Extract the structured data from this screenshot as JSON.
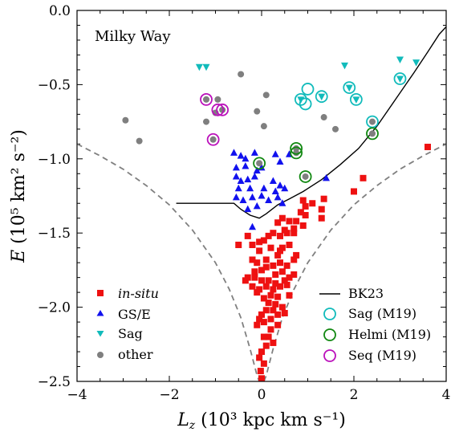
{
  "chart_data": {
    "type": "scatter",
    "title": "Milky Way",
    "xlabel": {
      "main": "L",
      "sub": "z",
      "unit": " (10³ kpc km s⁻¹)"
    },
    "ylabel": {
      "main": "E",
      "unit": " (10⁵ km² s⁻²)"
    },
    "xlim": [
      -4,
      4
    ],
    "ylim": [
      -2.5,
      0.0
    ],
    "xticks": [
      -4,
      -2,
      0,
      2,
      4
    ],
    "yticks": [
      0.0,
      -0.5,
      -1.0,
      -1.5,
      -2.0,
      -2.5
    ],
    "xtick_labels": [
      "−4",
      "−2",
      "0",
      "2",
      "4"
    ],
    "ytick_labels": [
      "0.0",
      "−0.5",
      "−1.0",
      "−1.5",
      "−2.0",
      "−2.5"
    ],
    "legend_left": [
      "in-situ",
      "GS/E",
      "Sag",
      "other"
    ],
    "legend_right": [
      "BK23",
      "Sag (M19)",
      "Helmi (M19)",
      "Seq (M19)"
    ],
    "colors": {
      "insitu": "#ee1111",
      "gse": "#1111ee",
      "sag": "#11bbbb",
      "other": "#7f7f7f",
      "helmi": "#118811",
      "seq": "#bb11bb",
      "bk23": "#000000",
      "boundary": "#808080"
    },
    "series": [
      {
        "name": "in-situ",
        "marker": "square",
        "color_key": "insitu",
        "points": [
          [
            3.6,
            -0.92
          ],
          [
            2.2,
            -1.13
          ],
          [
            2.0,
            -1.22
          ],
          [
            1.35,
            -1.27
          ],
          [
            1.3,
            -1.34
          ],
          [
            1.3,
            -1.4
          ],
          [
            0.95,
            -1.32
          ],
          [
            0.95,
            -1.38
          ],
          [
            0.9,
            -1.45
          ],
          [
            0.85,
            -1.36
          ],
          [
            0.75,
            -1.42
          ],
          [
            0.7,
            -1.47
          ],
          [
            0.6,
            -1.42
          ],
          [
            0.55,
            -1.5
          ],
          [
            0.5,
            -1.48
          ],
          [
            0.45,
            -1.4
          ],
          [
            0.4,
            -1.52
          ],
          [
            0.35,
            -1.43
          ],
          [
            -0.5,
            -1.58
          ],
          [
            -0.3,
            -1.52
          ],
          [
            -0.2,
            -1.58
          ],
          [
            0.05,
            -1.55
          ],
          [
            0.15,
            -1.52
          ],
          [
            0.45,
            -1.6
          ],
          [
            0.6,
            -1.58
          ],
          [
            0.75,
            -1.65
          ],
          [
            0.35,
            -1.65
          ],
          [
            0.2,
            -1.6
          ],
          [
            -0.05,
            -1.62
          ],
          [
            0.1,
            -1.68
          ],
          [
            -0.1,
            -1.7
          ],
          [
            -0.2,
            -1.68
          ],
          [
            0.0,
            -1.75
          ],
          [
            0.1,
            -1.73
          ],
          [
            0.25,
            -1.72
          ],
          [
            0.4,
            -1.7
          ],
          [
            0.55,
            -1.72
          ],
          [
            0.7,
            -1.68
          ],
          [
            -0.15,
            -1.76
          ],
          [
            0.3,
            -1.78
          ],
          [
            0.45,
            -1.76
          ],
          [
            0.6,
            -1.8
          ],
          [
            -0.35,
            -1.82
          ],
          [
            -0.3,
            -1.8
          ],
          [
            -0.15,
            -1.8
          ],
          [
            0.0,
            -1.82
          ],
          [
            0.15,
            -1.82
          ],
          [
            0.3,
            -1.84
          ],
          [
            0.5,
            -1.82
          ],
          [
            0.7,
            -1.78
          ],
          [
            -0.2,
            -1.86
          ],
          [
            -0.05,
            -1.88
          ],
          [
            0.1,
            -1.86
          ],
          [
            0.25,
            -1.88
          ],
          [
            0.4,
            -1.86
          ],
          [
            0.55,
            -1.85
          ],
          [
            0.6,
            -1.92
          ],
          [
            0.35,
            -1.93
          ],
          [
            0.2,
            -1.92
          ],
          [
            0.05,
            -1.94
          ],
          [
            -0.1,
            -1.9
          ],
          [
            0.15,
            -1.97
          ],
          [
            0.3,
            -1.98
          ],
          [
            0.45,
            -2.0
          ],
          [
            0.5,
            -2.04
          ],
          [
            0.35,
            -2.05
          ],
          [
            0.25,
            -2.02
          ],
          [
            0.1,
            -2.02
          ],
          [
            0.0,
            -2.05
          ],
          [
            -0.05,
            -2.08
          ],
          [
            0.05,
            -2.1
          ],
          [
            0.2,
            -2.08
          ],
          [
            0.35,
            -2.12
          ],
          [
            0.2,
            -2.15
          ],
          [
            -0.1,
            -2.12
          ],
          [
            0.15,
            -2.2
          ],
          [
            0.05,
            -2.2
          ],
          [
            0.25,
            -2.24
          ],
          [
            0.1,
            -2.26
          ],
          [
            0.0,
            -2.3
          ],
          [
            -0.05,
            -2.34
          ],
          [
            0.05,
            -2.38
          ],
          [
            -0.02,
            -2.43
          ],
          [
            0.0,
            -2.48
          ],
          [
            0.9,
            -1.28
          ],
          [
            1.1,
            -1.3
          ],
          [
            0.7,
            -1.5
          ],
          [
            0.4,
            -1.62
          ],
          [
            -0.05,
            -1.56
          ],
          [
            0.25,
            -1.5
          ]
        ]
      },
      {
        "name": "GS/E",
        "marker": "triangle-up",
        "color_key": "gse",
        "points": [
          [
            -0.6,
            -0.96
          ],
          [
            -0.45,
            -0.98
          ],
          [
            -0.35,
            -1.0
          ],
          [
            -0.15,
            -0.96
          ],
          [
            -0.55,
            -1.06
          ],
          [
            -0.35,
            -1.05
          ],
          [
            -0.1,
            -1.08
          ],
          [
            0.0,
            -1.06
          ],
          [
            0.3,
            -0.97
          ],
          [
            0.4,
            -1.02
          ],
          [
            0.6,
            -0.97
          ],
          [
            -0.55,
            -1.12
          ],
          [
            -0.45,
            -1.15
          ],
          [
            -0.3,
            -1.14
          ],
          [
            -0.15,
            -1.12
          ],
          [
            0.25,
            -1.15
          ],
          [
            0.4,
            -1.18
          ],
          [
            1.4,
            -1.13
          ],
          [
            -0.5,
            -1.2
          ],
          [
            -0.25,
            -1.2
          ],
          [
            0.05,
            -1.2
          ],
          [
            0.3,
            -1.22
          ],
          [
            0.5,
            -1.2
          ],
          [
            -0.55,
            -1.26
          ],
          [
            -0.4,
            -1.28
          ],
          [
            -0.2,
            -1.26
          ],
          [
            0.0,
            -1.25
          ],
          [
            0.15,
            -1.28
          ],
          [
            0.35,
            -1.26
          ],
          [
            -0.3,
            -1.34
          ],
          [
            -0.1,
            -1.32
          ],
          [
            0.45,
            -1.3
          ],
          [
            -0.2,
            -1.46
          ]
        ]
      },
      {
        "name": "Sag",
        "marker": "triangle-down",
        "color_key": "sag",
        "points": [
          [
            -1.35,
            -0.38
          ],
          [
            -1.2,
            -0.38
          ],
          [
            1.8,
            -0.37
          ],
          [
            3.0,
            -0.33
          ],
          [
            3.35,
            -0.35
          ],
          [
            3.0,
            -0.46
          ],
          [
            1.9,
            -0.52
          ],
          [
            1.3,
            -0.58
          ],
          [
            0.85,
            -0.6
          ],
          [
            2.05,
            -0.6
          ]
        ]
      },
      {
        "name": "other",
        "marker": "circle",
        "color_key": "other",
        "points": [
          [
            -2.95,
            -0.74
          ],
          [
            -2.65,
            -0.88
          ],
          [
            -0.45,
            -0.43
          ],
          [
            -1.2,
            -0.6
          ],
          [
            -0.95,
            -0.6
          ],
          [
            -1.0,
            -0.69
          ],
          [
            -0.85,
            -0.67
          ],
          [
            -1.2,
            -0.75
          ],
          [
            -0.1,
            -0.68
          ],
          [
            0.1,
            -0.57
          ],
          [
            0.05,
            -0.78
          ],
          [
            1.35,
            -0.72
          ],
          [
            1.6,
            -0.8
          ],
          [
            2.4,
            -0.75
          ],
          [
            2.4,
            -0.83
          ],
          [
            -1.05,
            -0.87
          ],
          [
            0.75,
            -0.93
          ],
          [
            0.75,
            -0.96
          ],
          [
            0.95,
            -1.12
          ],
          [
            -0.05,
            -1.03
          ]
        ]
      },
      {
        "name": "Sag (M19)",
        "marker": "open-circle",
        "color_key": "sag",
        "points": [
          [
            0.85,
            -0.6
          ],
          [
            0.95,
            -0.63
          ],
          [
            1.0,
            -0.53
          ],
          [
            1.3,
            -0.58
          ],
          [
            1.9,
            -0.52
          ],
          [
            2.05,
            -0.6
          ],
          [
            3.0,
            -0.46
          ],
          [
            2.4,
            -0.75
          ]
        ]
      },
      {
        "name": "Helmi (M19)",
        "marker": "open-circle",
        "color_key": "helmi",
        "points": [
          [
            -0.05,
            -1.03
          ],
          [
            0.75,
            -0.93
          ],
          [
            0.75,
            -0.96
          ],
          [
            0.95,
            -1.12
          ],
          [
            2.4,
            -0.83
          ]
        ]
      },
      {
        "name": "Seq (M19)",
        "marker": "open-circle",
        "color_key": "seq",
        "points": [
          [
            -1.2,
            -0.6
          ],
          [
            -0.95,
            -0.67
          ],
          [
            -0.85,
            -0.67
          ],
          [
            -1.05,
            -0.87
          ]
        ]
      }
    ],
    "bk23_curve": [
      [
        -1.85,
        -1.3
      ],
      [
        -0.6,
        -1.3
      ],
      [
        -0.45,
        -1.34
      ],
      [
        -0.25,
        -1.38
      ],
      [
        -0.05,
        -1.4
      ],
      [
        0.1,
        -1.37
      ],
      [
        0.35,
        -1.31
      ],
      [
        0.6,
        -1.27
      ],
      [
        0.9,
        -1.22
      ],
      [
        1.3,
        -1.14
      ],
      [
        1.7,
        -1.04
      ],
      [
        2.1,
        -0.93
      ],
      [
        2.5,
        -0.78
      ],
      [
        2.9,
        -0.6
      ],
      [
        3.3,
        -0.42
      ],
      [
        3.6,
        -0.28
      ],
      [
        3.85,
        -0.16
      ],
      [
        4.0,
        -0.11
      ]
    ],
    "boundary_curve": {
      "description": "dashed grey envelope",
      "left": [
        [
          -4.0,
          -0.9
        ],
        [
          -3.5,
          -0.98
        ],
        [
          -3.0,
          -1.07
        ],
        [
          -2.5,
          -1.18
        ],
        [
          -2.0,
          -1.31
        ],
        [
          -1.5,
          -1.48
        ],
        [
          -1.0,
          -1.7
        ],
        [
          -0.7,
          -1.88
        ],
        [
          -0.45,
          -2.07
        ],
        [
          -0.25,
          -2.28
        ],
        [
          -0.1,
          -2.46
        ],
        [
          -0.05,
          -2.5
        ]
      ],
      "right": [
        [
          0.05,
          -2.5
        ],
        [
          0.1,
          -2.46
        ],
        [
          0.25,
          -2.28
        ],
        [
          0.45,
          -2.07
        ],
        [
          0.7,
          -1.88
        ],
        [
          1.0,
          -1.7
        ],
        [
          1.5,
          -1.48
        ],
        [
          2.0,
          -1.31
        ],
        [
          2.5,
          -1.18
        ],
        [
          3.0,
          -1.07
        ],
        [
          3.5,
          -0.98
        ],
        [
          4.0,
          -0.9
        ]
      ]
    }
  }
}
